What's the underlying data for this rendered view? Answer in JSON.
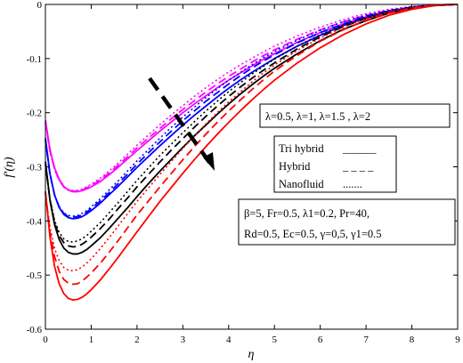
{
  "chart_data": {
    "type": "line",
    "title": "",
    "xlabel": "η",
    "ylabel": "f′(η)",
    "xlim": [
      0,
      9
    ],
    "ylim": [
      -0.6,
      0
    ],
    "xticks": [
      "0",
      "1",
      "2",
      "3",
      "4",
      "5",
      "6",
      "7",
      "8",
      "9"
    ],
    "yticks": [
      "0",
      "-0.1",
      "-0.2",
      "-0.3",
      "-0.4",
      "-0.5",
      "-0.6"
    ],
    "grid": false,
    "lambda_annotation": "λ=0.5, λ=1, λ=1.5 , λ=2",
    "line_styles": [
      {
        "label": "Tri hybrid",
        "sample": "______"
      },
      {
        "label": "Hybrid",
        "sample": "_ _ _ _"
      },
      {
        "label": "Nanofluid",
        "sample": "......."
      }
    ],
    "parameters_line1": "β=5,  Fr=0.5,   λ1=0.2,  Pr=40,",
    "parameters_line2": "Rd=0.5,  Ec=0.5,  γ=0,5,  γ1=0.5",
    "lambda_colors": [
      "#ff00ff",
      "#0000ff",
      "#000000",
      "#ff0000"
    ],
    "eta": [
      0,
      0.1,
      0.2,
      0.3,
      0.4,
      0.5,
      0.6,
      0.7,
      0.8,
      0.9,
      1.0,
      1.2,
      1.4,
      1.6,
      1.8,
      2.0,
      2.25,
      2.5,
      2.75,
      3.0,
      3.25,
      3.5,
      3.75,
      4.0,
      4.25,
      4.5,
      4.75,
      5.0,
      5.5,
      6.0,
      6.5,
      7.0,
      7.5,
      8.0,
      8.5,
      9.0
    ],
    "series": [
      {
        "lambda": 0.5,
        "fluid": "Tri hybrid",
        "color": "#ff00ff",
        "style": "solid",
        "values": [
          -0.214,
          -0.268,
          -0.302,
          -0.323,
          -0.336,
          -0.343,
          -0.346,
          -0.346,
          -0.344,
          -0.341,
          -0.337,
          -0.327,
          -0.314,
          -0.3,
          -0.285,
          -0.27,
          -0.252,
          -0.234,
          -0.217,
          -0.2,
          -0.184,
          -0.169,
          -0.154,
          -0.14,
          -0.127,
          -0.114,
          -0.102,
          -0.091,
          -0.07,
          -0.052,
          -0.036,
          -0.023,
          -0.013,
          -0.006,
          -0.002,
          0.0
        ]
      },
      {
        "lambda": 0.5,
        "fluid": "Hybrid",
        "color": "#ff00ff",
        "style": "dashed",
        "values": [
          -0.218,
          -0.271,
          -0.304,
          -0.325,
          -0.337,
          -0.343,
          -0.345,
          -0.345,
          -0.343,
          -0.339,
          -0.335,
          -0.324,
          -0.311,
          -0.296,
          -0.281,
          -0.265,
          -0.247,
          -0.229,
          -0.211,
          -0.194,
          -0.178,
          -0.162,
          -0.147,
          -0.133,
          -0.12,
          -0.107,
          -0.095,
          -0.084,
          -0.064,
          -0.047,
          -0.032,
          -0.02,
          -0.011,
          -0.005,
          -0.001,
          0.0
        ]
      },
      {
        "lambda": 0.5,
        "fluid": "Nanofluid",
        "color": "#ff00ff",
        "style": "dotted",
        "values": [
          -0.22,
          -0.272,
          -0.305,
          -0.325,
          -0.337,
          -0.342,
          -0.344,
          -0.343,
          -0.341,
          -0.337,
          -0.332,
          -0.321,
          -0.307,
          -0.292,
          -0.276,
          -0.26,
          -0.241,
          -0.222,
          -0.204,
          -0.187,
          -0.17,
          -0.154,
          -0.139,
          -0.125,
          -0.112,
          -0.1,
          -0.088,
          -0.077,
          -0.058,
          -0.042,
          -0.028,
          -0.017,
          -0.009,
          -0.004,
          -0.001,
          0.0
        ]
      },
      {
        "lambda": 1,
        "fluid": "Tri hybrid",
        "color": "#0000ff",
        "style": "solid",
        "values": [
          -0.247,
          -0.313,
          -0.352,
          -0.375,
          -0.388,
          -0.394,
          -0.396,
          -0.395,
          -0.392,
          -0.387,
          -0.381,
          -0.367,
          -0.351,
          -0.335,
          -0.318,
          -0.301,
          -0.281,
          -0.261,
          -0.242,
          -0.223,
          -0.205,
          -0.188,
          -0.171,
          -0.155,
          -0.14,
          -0.126,
          -0.113,
          -0.1,
          -0.077,
          -0.057,
          -0.039,
          -0.025,
          -0.014,
          -0.006,
          -0.002,
          0.0
        ]
      },
      {
        "lambda": 1,
        "fluid": "Hybrid",
        "color": "#0000ff",
        "style": "dashed",
        "values": [
          -0.25,
          -0.314,
          -0.352,
          -0.374,
          -0.386,
          -0.392,
          -0.393,
          -0.392,
          -0.389,
          -0.384,
          -0.377,
          -0.363,
          -0.347,
          -0.33,
          -0.313,
          -0.295,
          -0.274,
          -0.254,
          -0.234,
          -0.215,
          -0.197,
          -0.179,
          -0.163,
          -0.147,
          -0.132,
          -0.118,
          -0.105,
          -0.093,
          -0.071,
          -0.052,
          -0.036,
          -0.022,
          -0.012,
          -0.005,
          -0.001,
          0.0
        ]
      },
      {
        "lambda": 1,
        "fluid": "Nanofluid",
        "color": "#0000ff",
        "style": "dotted",
        "values": [
          -0.253,
          -0.315,
          -0.352,
          -0.373,
          -0.385,
          -0.39,
          -0.391,
          -0.39,
          -0.386,
          -0.381,
          -0.374,
          -0.359,
          -0.342,
          -0.325,
          -0.307,
          -0.289,
          -0.268,
          -0.247,
          -0.227,
          -0.208,
          -0.19,
          -0.172,
          -0.156,
          -0.14,
          -0.126,
          -0.112,
          -0.099,
          -0.087,
          -0.066,
          -0.048,
          -0.032,
          -0.02,
          -0.011,
          -0.004,
          -0.001,
          0.0
        ]
      },
      {
        "lambda": 1.5,
        "fluid": "Tri hybrid",
        "color": "#000000",
        "style": "solid",
        "values": [
          -0.29,
          -0.362,
          -0.407,
          -0.434,
          -0.45,
          -0.458,
          -0.461,
          -0.461,
          -0.458,
          -0.453,
          -0.446,
          -0.431,
          -0.413,
          -0.394,
          -0.375,
          -0.355,
          -0.331,
          -0.308,
          -0.286,
          -0.264,
          -0.243,
          -0.223,
          -0.203,
          -0.184,
          -0.166,
          -0.149,
          -0.133,
          -0.118,
          -0.091,
          -0.067,
          -0.046,
          -0.03,
          -0.016,
          -0.007,
          -0.002,
          0.0
        ]
      },
      {
        "lambda": 1.5,
        "fluid": "Hybrid",
        "color": "#000000",
        "style": "dashed",
        "values": [
          -0.294,
          -0.361,
          -0.403,
          -0.427,
          -0.44,
          -0.446,
          -0.448,
          -0.447,
          -0.443,
          -0.437,
          -0.43,
          -0.414,
          -0.396,
          -0.376,
          -0.357,
          -0.337,
          -0.314,
          -0.291,
          -0.269,
          -0.248,
          -0.227,
          -0.207,
          -0.188,
          -0.17,
          -0.153,
          -0.137,
          -0.122,
          -0.108,
          -0.082,
          -0.06,
          -0.041,
          -0.026,
          -0.014,
          -0.006,
          -0.001,
          0.0
        ]
      },
      {
        "lambda": 1.5,
        "fluid": "Nanofluid",
        "color": "#000000",
        "style": "dotted",
        "values": [
          -0.297,
          -0.36,
          -0.399,
          -0.421,
          -0.433,
          -0.438,
          -0.439,
          -0.437,
          -0.433,
          -0.427,
          -0.419,
          -0.403,
          -0.384,
          -0.365,
          -0.345,
          -0.325,
          -0.302,
          -0.279,
          -0.258,
          -0.237,
          -0.217,
          -0.197,
          -0.179,
          -0.161,
          -0.145,
          -0.129,
          -0.115,
          -0.101,
          -0.077,
          -0.056,
          -0.038,
          -0.023,
          -0.012,
          -0.005,
          -0.001,
          0.0
        ]
      },
      {
        "lambda": 2,
        "fluid": "Tri hybrid",
        "color": "#ff0000",
        "style": "solid",
        "values": [
          -0.345,
          -0.43,
          -0.484,
          -0.516,
          -0.534,
          -0.543,
          -0.546,
          -0.545,
          -0.541,
          -0.535,
          -0.527,
          -0.509,
          -0.488,
          -0.466,
          -0.443,
          -0.42,
          -0.392,
          -0.364,
          -0.338,
          -0.312,
          -0.287,
          -0.263,
          -0.24,
          -0.218,
          -0.197,
          -0.177,
          -0.158,
          -0.14,
          -0.108,
          -0.08,
          -0.056,
          -0.036,
          -0.02,
          -0.009,
          -0.002,
          0.0
        ]
      },
      {
        "lambda": 2,
        "fluid": "Hybrid",
        "color": "#ff0000",
        "style": "dashed",
        "values": [
          -0.347,
          -0.42,
          -0.466,
          -0.493,
          -0.508,
          -0.515,
          -0.517,
          -0.516,
          -0.511,
          -0.504,
          -0.496,
          -0.478,
          -0.457,
          -0.435,
          -0.412,
          -0.389,
          -0.363,
          -0.337,
          -0.312,
          -0.287,
          -0.263,
          -0.24,
          -0.218,
          -0.197,
          -0.177,
          -0.158,
          -0.14,
          -0.123,
          -0.094,
          -0.068,
          -0.047,
          -0.029,
          -0.016,
          -0.007,
          -0.001,
          0.0
        ]
      },
      {
        "lambda": 2,
        "fluid": "Nanofluid",
        "color": "#ff0000",
        "style": "dotted",
        "values": [
          -0.35,
          -0.412,
          -0.451,
          -0.473,
          -0.486,
          -0.491,
          -0.492,
          -0.49,
          -0.485,
          -0.478,
          -0.47,
          -0.451,
          -0.43,
          -0.408,
          -0.386,
          -0.364,
          -0.339,
          -0.314,
          -0.29,
          -0.266,
          -0.243,
          -0.221,
          -0.2,
          -0.18,
          -0.162,
          -0.144,
          -0.127,
          -0.112,
          -0.085,
          -0.062,
          -0.042,
          -0.026,
          -0.014,
          -0.006,
          -0.001,
          0.0
        ]
      }
    ]
  }
}
